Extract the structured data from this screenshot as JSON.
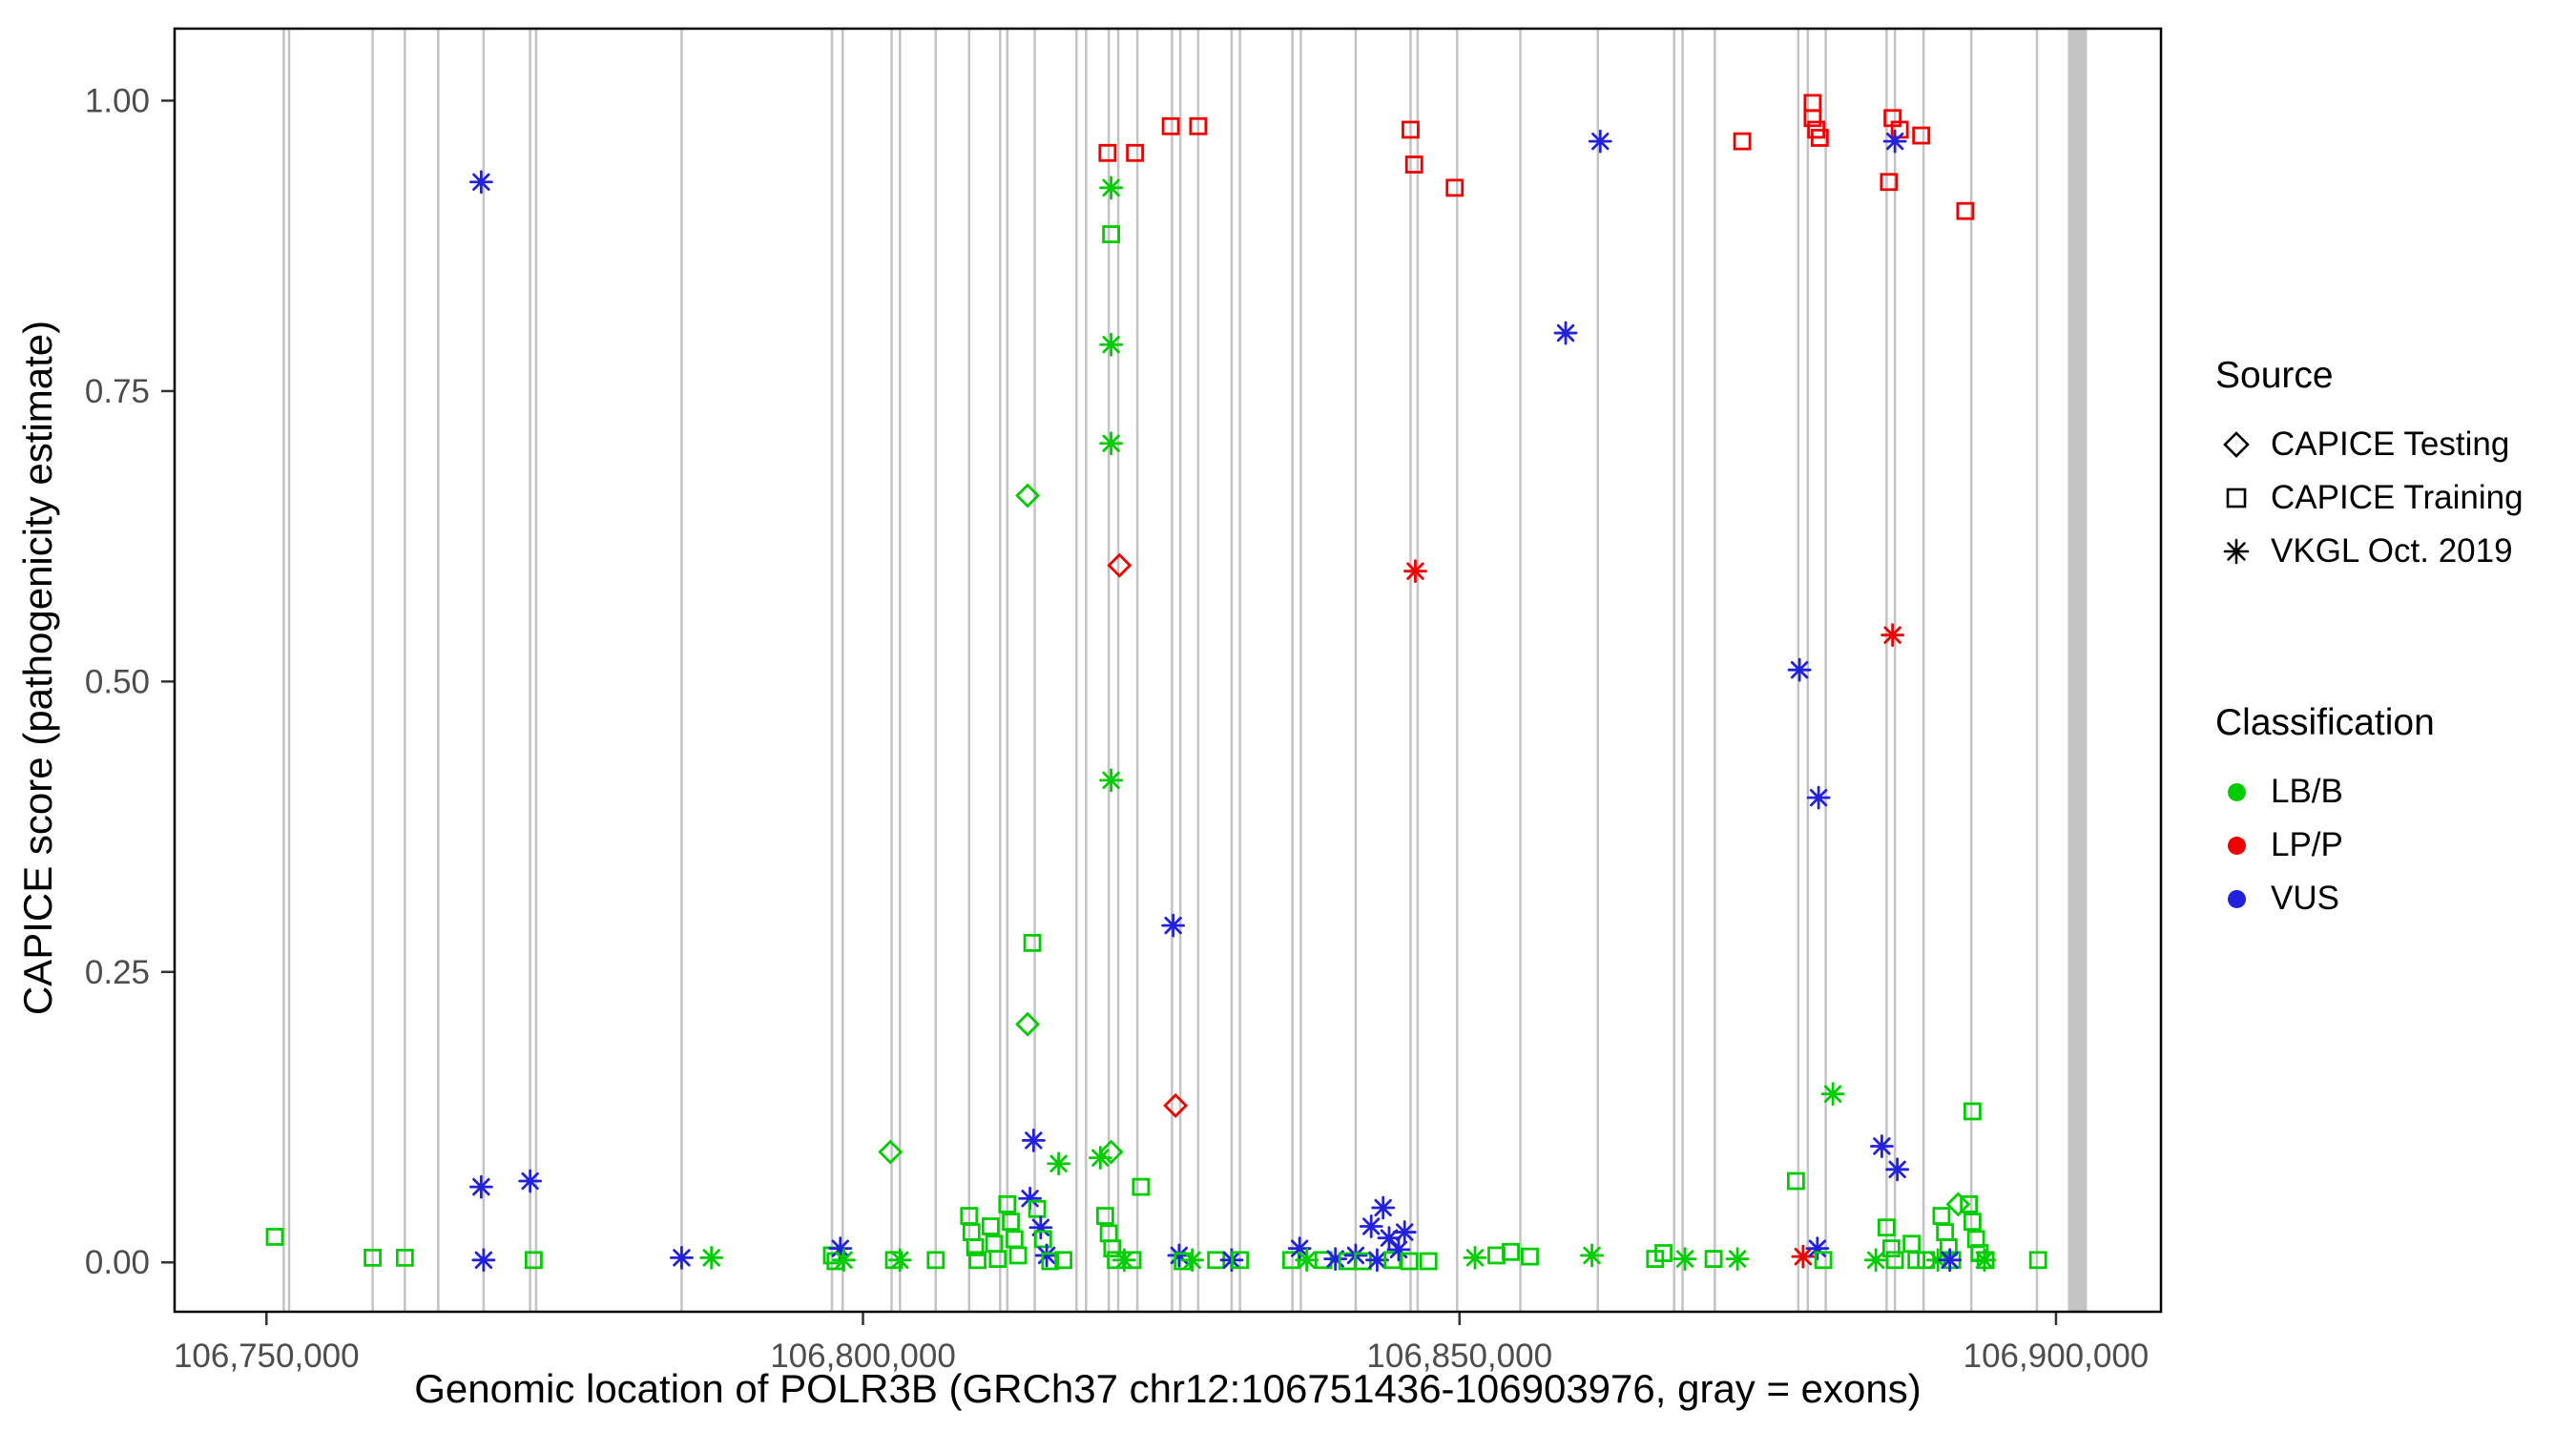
{
  "chart_data": {
    "type": "scatter",
    "title": "",
    "xlabel": "Genomic location of POLR3B (GRCh37 chr12:106751436-106903976, gray = exons)",
    "ylabel": "CAPICE score (pathogenicity estimate)",
    "xlim": [
      106742300,
      106908800
    ],
    "ylim": [
      -0.0425,
      1.062
    ],
    "grid": false,
    "legend_position": "right",
    "x_ticks": [
      {
        "value": 106750000,
        "label": "106,750,000"
      },
      {
        "value": 106800000,
        "label": "106,800,000"
      },
      {
        "value": 106850000,
        "label": "106,850,000"
      },
      {
        "value": 106900000,
        "label": "106,900,000"
      }
    ],
    "y_ticks": [
      {
        "value": 0.0,
        "label": "0.00"
      },
      {
        "value": 0.25,
        "label": "0.25"
      },
      {
        "value": 0.5,
        "label": "0.50"
      },
      {
        "value": 0.75,
        "label": "0.75"
      },
      {
        "value": 1.0,
        "label": "1.00"
      }
    ],
    "exon_color": "#c3c3c3",
    "exons": [
      106751450,
      106751900,
      106758900,
      106761600,
      106764400,
      106768200,
      106772100,
      106772600,
      106784800,
      106797400,
      106798300,
      106802400,
      106803100,
      106806100,
      106808900,
      106811500,
      106812100,
      106814400,
      106817900,
      106818700,
      106820600,
      106821400,
      106823000,
      106825900,
      106826600,
      106828100,
      106830900,
      106831600,
      106836000,
      106836700,
      106841300,
      106845900,
      106846500,
      106849800,
      106855100,
      106861600,
      106868000,
      106868700,
      106871400,
      106878400,
      106879200,
      106880700,
      106885800,
      106886500,
      106888900,
      106892900,
      106898400
    ],
    "wide_exon": {
      "start": 106901000,
      "end": 106902600
    },
    "source_codes": {
      "T": "CAPICE Testing (diamond)",
      "R": "CAPICE Training (square)",
      "V": "VKGL Oct. 2019 (asterisk)"
    },
    "class_codes": {
      "g": "LB/B",
      "r": "LP/P",
      "b": "VUS"
    },
    "class_colors": {
      "g": "#00cd00",
      "r": "#ee0000",
      "b": "#2222dd"
    },
    "points": [
      [
        106750700,
        0.022,
        "R",
        "g"
      ],
      [
        106758900,
        0.004,
        "R",
        "g"
      ],
      [
        106761600,
        0.004,
        "R",
        "g"
      ],
      [
        106768000,
        0.93,
        "V",
        "b"
      ],
      [
        106768000,
        0.065,
        "V",
        "b"
      ],
      [
        106768200,
        0.002,
        "V",
        "b"
      ],
      [
        106772100,
        0.07,
        "V",
        "b"
      ],
      [
        106772400,
        0.002,
        "R",
        "g"
      ],
      [
        106784800,
        0.004,
        "V",
        "b"
      ],
      [
        106787300,
        0.004,
        "V",
        "g"
      ],
      [
        106797400,
        0.006,
        "R",
        "g"
      ],
      [
        106797700,
        0.001,
        "R",
        "g"
      ],
      [
        106798100,
        0.012,
        "V",
        "b"
      ],
      [
        106798400,
        0.002,
        "V",
        "g"
      ],
      [
        106802300,
        0.095,
        "T",
        "g"
      ],
      [
        106802600,
        0.002,
        "R",
        "g"
      ],
      [
        106803100,
        0.002,
        "V",
        "g"
      ],
      [
        106806100,
        0.002,
        "R",
        "g"
      ],
      [
        106808900,
        0.04,
        "R",
        "g"
      ],
      [
        106809100,
        0.026,
        "R",
        "g"
      ],
      [
        106809400,
        0.013,
        "R",
        "g"
      ],
      [
        106809600,
        0.002,
        "R",
        "g"
      ],
      [
        106810700,
        0.031,
        "R",
        "g"
      ],
      [
        106811000,
        0.016,
        "R",
        "g"
      ],
      [
        106811300,
        0.003,
        "R",
        "g"
      ],
      [
        106812100,
        0.05,
        "R",
        "g"
      ],
      [
        106812400,
        0.035,
        "R",
        "g"
      ],
      [
        106812700,
        0.02,
        "R",
        "g"
      ],
      [
        106813000,
        0.006,
        "R",
        "g"
      ],
      [
        106813800,
        0.66,
        "T",
        "g"
      ],
      [
        106813800,
        0.205,
        "T",
        "g"
      ],
      [
        106814200,
        0.275,
        "R",
        "g"
      ],
      [
        106814300,
        0.105,
        "V",
        "b"
      ],
      [
        106814000,
        0.055,
        "V",
        "b"
      ],
      [
        106814600,
        0.046,
        "R",
        "g"
      ],
      [
        106814900,
        0.03,
        "V",
        "b"
      ],
      [
        106815100,
        0.02,
        "R",
        "g"
      ],
      [
        106815400,
        0.006,
        "V",
        "b"
      ],
      [
        106815700,
        0.001,
        "R",
        "g"
      ],
      [
        106816400,
        0.085,
        "V",
        "g"
      ],
      [
        106816800,
        0.002,
        "R",
        "g"
      ],
      [
        106819900,
        0.09,
        "V",
        "g"
      ],
      [
        106820500,
        0.955,
        "R",
        "r"
      ],
      [
        106822800,
        0.955,
        "R",
        "r"
      ],
      [
        106820800,
        0.925,
        "V",
        "g"
      ],
      [
        106820800,
        0.885,
        "R",
        "g"
      ],
      [
        106820800,
        0.79,
        "V",
        "g"
      ],
      [
        106820800,
        0.705,
        "V",
        "g"
      ],
      [
        106821500,
        0.6,
        "T",
        "r"
      ],
      [
        106820800,
        0.415,
        "V",
        "g"
      ],
      [
        106820800,
        0.095,
        "T",
        "g"
      ],
      [
        106820300,
        0.04,
        "R",
        "g"
      ],
      [
        106820600,
        0.025,
        "R",
        "g"
      ],
      [
        106820900,
        0.012,
        "R",
        "g"
      ],
      [
        106821200,
        0.002,
        "R",
        "g"
      ],
      [
        106821900,
        0.002,
        "V",
        "g"
      ],
      [
        106822600,
        0.002,
        "R",
        "g"
      ],
      [
        106823300,
        0.065,
        "R",
        "g"
      ],
      [
        106825800,
        0.978,
        "R",
        "r"
      ],
      [
        106828100,
        0.978,
        "R",
        "r"
      ],
      [
        106826000,
        0.29,
        "V",
        "b"
      ],
      [
        106826200,
        0.135,
        "T",
        "r"
      ],
      [
        106826500,
        0.006,
        "V",
        "b"
      ],
      [
        106826800,
        0.001,
        "R",
        "g"
      ],
      [
        106827600,
        0.002,
        "V",
        "g"
      ],
      [
        106829600,
        0.002,
        "R",
        "g"
      ],
      [
        106830900,
        0.002,
        "V",
        "b"
      ],
      [
        106831600,
        0.002,
        "R",
        "g"
      ],
      [
        106835900,
        0.002,
        "R",
        "g"
      ],
      [
        106836600,
        0.012,
        "V",
        "b"
      ],
      [
        106837200,
        0.002,
        "V",
        "g"
      ],
      [
        106838600,
        0.002,
        "R",
        "g"
      ],
      [
        106839600,
        0.003,
        "V",
        "b"
      ],
      [
        106840600,
        0.001,
        "R",
        "g"
      ],
      [
        106841300,
        0.006,
        "V",
        "b"
      ],
      [
        106841900,
        0.001,
        "R",
        "g"
      ],
      [
        106842600,
        0.031,
        "V",
        "b"
      ],
      [
        106843100,
        0.002,
        "V",
        "b"
      ],
      [
        106843600,
        0.047,
        "V",
        "b"
      ],
      [
        106844100,
        0.021,
        "V",
        "b"
      ],
      [
        106844400,
        0.002,
        "R",
        "g"
      ],
      [
        106844900,
        0.011,
        "V",
        "b"
      ],
      [
        106845400,
        0.026,
        "V",
        "b"
      ],
      [
        106845800,
        0.001,
        "R",
        "g"
      ],
      [
        106845900,
        0.975,
        "R",
        "r"
      ],
      [
        106846200,
        0.945,
        "R",
        "r"
      ],
      [
        106846300,
        0.595,
        "V",
        "r"
      ],
      [
        106847400,
        0.001,
        "R",
        "g"
      ],
      [
        106849600,
        0.925,
        "R",
        "r"
      ],
      [
        106851300,
        0.004,
        "V",
        "g"
      ],
      [
        106853100,
        0.006,
        "R",
        "g"
      ],
      [
        106854300,
        0.009,
        "R",
        "g"
      ],
      [
        106855900,
        0.005,
        "R",
        "g"
      ],
      [
        106858900,
        0.8,
        "V",
        "b"
      ],
      [
        106861800,
        0.965,
        "V",
        "b"
      ],
      [
        106861100,
        0.006,
        "V",
        "g"
      ],
      [
        106866400,
        0.003,
        "R",
        "g"
      ],
      [
        106867100,
        0.008,
        "R",
        "g"
      ],
      [
        106868900,
        0.003,
        "V",
        "g"
      ],
      [
        106871300,
        0.003,
        "R",
        "g"
      ],
      [
        106873300,
        0.003,
        "V",
        "g"
      ],
      [
        106873700,
        0.965,
        "R",
        "r"
      ],
      [
        106878200,
        0.07,
        "R",
        "g"
      ],
      [
        106878500,
        0.51,
        "V",
        "b"
      ],
      [
        106878800,
        0.005,
        "V",
        "r"
      ],
      [
        106879600,
        0.998,
        "R",
        "r"
      ],
      [
        106879600,
        0.985,
        "R",
        "r"
      ],
      [
        106879900,
        0.975,
        "R",
        "r"
      ],
      [
        106880200,
        0.968,
        "R",
        "r"
      ],
      [
        106880100,
        0.4,
        "V",
        "b"
      ],
      [
        106880000,
        0.012,
        "V",
        "b"
      ],
      [
        106880500,
        0.002,
        "R",
        "g"
      ],
      [
        106881300,
        0.145,
        "V",
        "g"
      ],
      [
        106884900,
        0.002,
        "V",
        "g"
      ],
      [
        106885400,
        0.1,
        "V",
        "b"
      ],
      [
        106885800,
        0.03,
        "R",
        "g"
      ],
      [
        106886000,
        0.93,
        "R",
        "r"
      ],
      [
        106886300,
        0.985,
        "R",
        "r"
      ],
      [
        106886900,
        0.975,
        "R",
        "r"
      ],
      [
        106886500,
        0.965,
        "V",
        "b"
      ],
      [
        106886300,
        0.54,
        "V",
        "r"
      ],
      [
        106886700,
        0.08,
        "V",
        "b"
      ],
      [
        106886200,
        0.012,
        "R",
        "g"
      ],
      [
        106886500,
        0.002,
        "R",
        "g"
      ],
      [
        106887900,
        0.016,
        "R",
        "g"
      ],
      [
        106888300,
        0.002,
        "R",
        "g"
      ],
      [
        106888700,
        0.97,
        "R",
        "r"
      ],
      [
        106889100,
        0.002,
        "R",
        "g"
      ],
      [
        106890100,
        0.002,
        "V",
        "g"
      ],
      [
        106890400,
        0.04,
        "R",
        "g"
      ],
      [
        106890700,
        0.026,
        "R",
        "g"
      ],
      [
        106891000,
        0.013,
        "R",
        "g"
      ],
      [
        106891300,
        0.002,
        "R",
        "g"
      ],
      [
        106891100,
        0.002,
        "V",
        "b"
      ],
      [
        106891800,
        0.05,
        "T",
        "g"
      ],
      [
        106892400,
        0.905,
        "R",
        "r"
      ],
      [
        106893000,
        0.13,
        "R",
        "g"
      ],
      [
        106892700,
        0.05,
        "R",
        "g"
      ],
      [
        106893000,
        0.035,
        "R",
        "g"
      ],
      [
        106893300,
        0.02,
        "R",
        "g"
      ],
      [
        106893600,
        0.008,
        "R",
        "g"
      ],
      [
        106894100,
        0.002,
        "R",
        "g"
      ],
      [
        106894000,
        0.002,
        "V",
        "g"
      ],
      [
        106898500,
        0.002,
        "R",
        "g"
      ]
    ]
  },
  "legend": {
    "source_title": "Source",
    "source_items": [
      "CAPICE Testing",
      "CAPICE Training",
      "VKGL Oct. 2019"
    ],
    "classification_title": "Classification",
    "classification_items": [
      {
        "label": "LB/B",
        "color": "#00cd00"
      },
      {
        "label": "LP/P",
        "color": "#ee0000"
      },
      {
        "label": "VUS",
        "color": "#2222dd"
      }
    ]
  }
}
